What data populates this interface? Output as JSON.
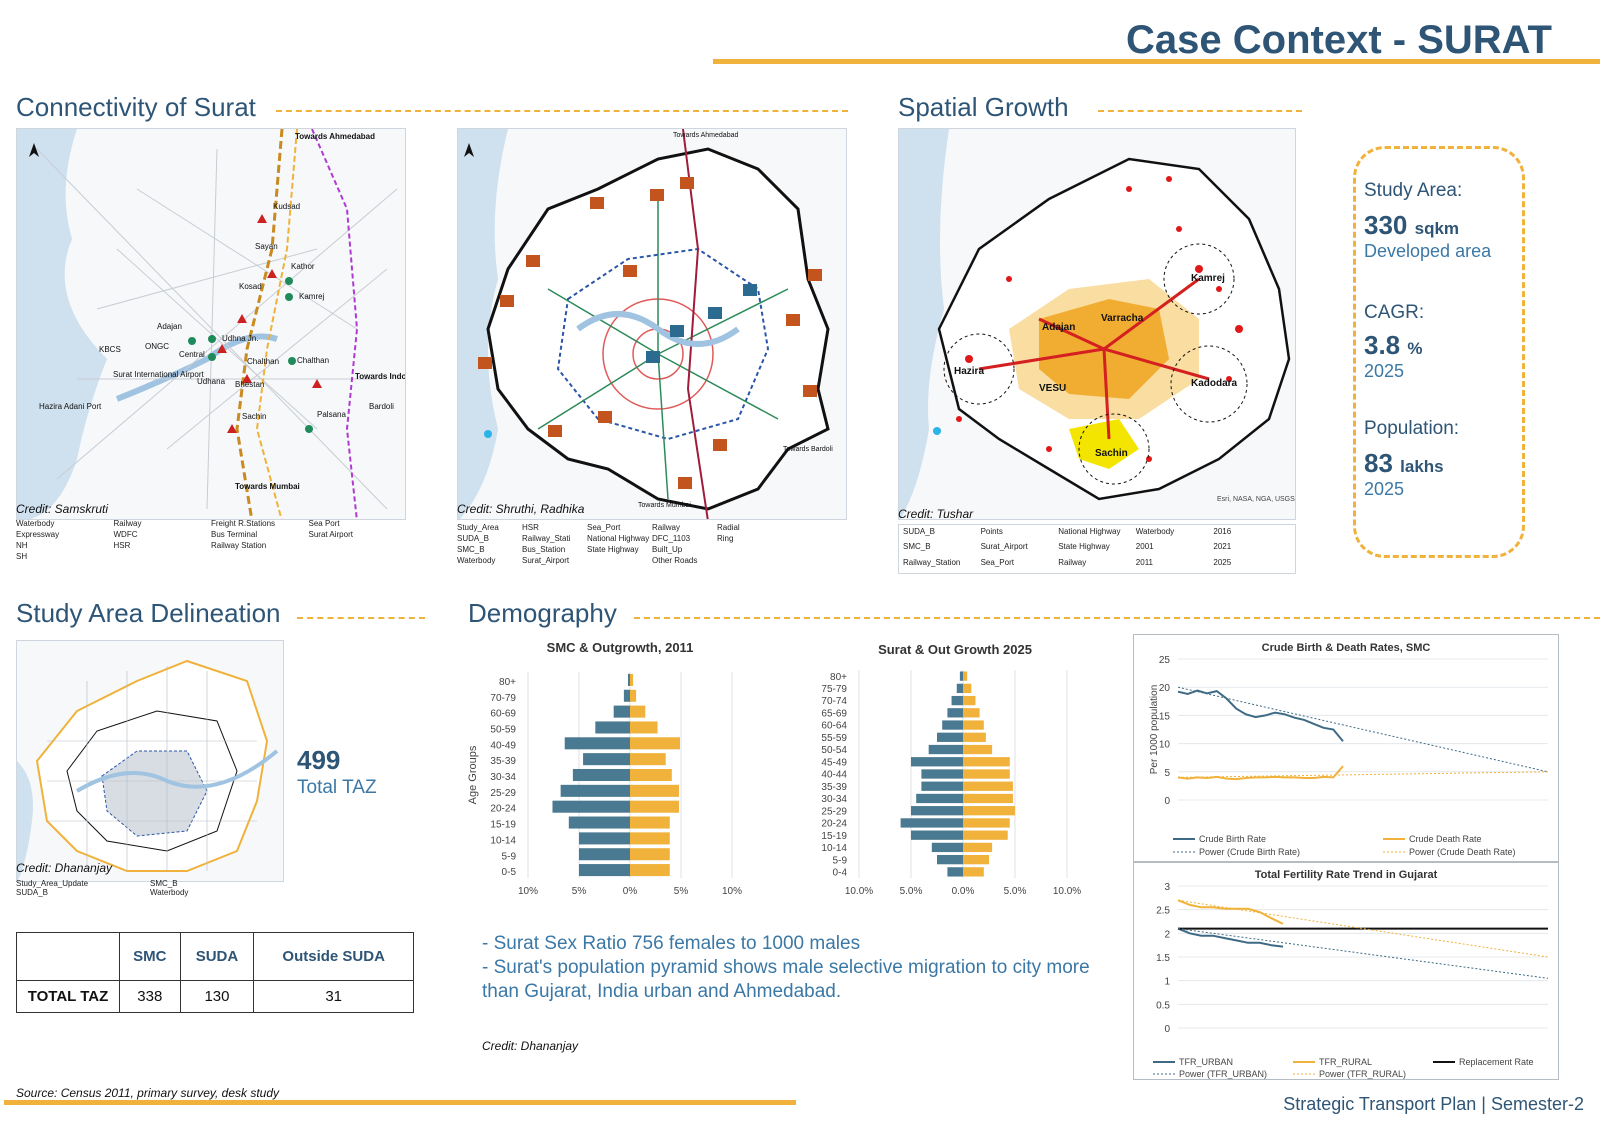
{
  "title": "Case Context - SURAT",
  "sections": {
    "connectivity": "Connectivity of Surat",
    "spatial": "Spatial Growth",
    "delineation": "Study Area Delineation",
    "demography": "Demography"
  },
  "map1": {
    "credit": "Credit: Samskruti",
    "labels": [
      "Towards Ahmedabad",
      "Kudsad",
      "Sayan",
      "Kathor",
      "Kosad",
      "Kamrej",
      "Adajan",
      "Udhna Jn.",
      "KBCS",
      "ONGC",
      "Central",
      "Chalthan",
      "Chalthan",
      "Surat International Airport",
      "Udhana",
      "Bhestan",
      "Towards Indore",
      "Bardoli",
      "Hazira Adani Port",
      "Sachin",
      "Palsana",
      "Towards Mumbai"
    ],
    "legend": [
      "Waterbody",
      "Expressway",
      "NH",
      "SH",
      "Railway",
      "WDFC",
      "HSR",
      "Freight R.Stations",
      "Bus Terminal",
      "Railway Station",
      "Sea Port",
      "Surat Airport"
    ]
  },
  "map2": {
    "credit": "Credit: Shruthi, Radhika",
    "labels": [
      "Towards Ahmedabad",
      "Towards Bardoli",
      "Towards Mumbai"
    ],
    "legend": [
      "Study_Area",
      "SUDA_B",
      "SMC_B",
      "Waterbody",
      "HSR",
      "Railway_Stati",
      "Bus_Station",
      "Surat_Airport",
      "Sea_Port",
      "National Highway",
      "State Highway",
      "Railway",
      "DFC_1103",
      "Built_Up",
      "Other Roads",
      "Radial",
      "Ring"
    ]
  },
  "map3": {
    "credit": "Credit: Tushar",
    "labels": [
      "Kamrej",
      "Varracha",
      "Adajan",
      "Hazira",
      "VESU",
      "Kadodara",
      "Sachin"
    ],
    "legend": [
      "SUDA_B",
      "SMC_B",
      "Railway_Station",
      "Points",
      "Surat_Airport",
      "Sea_Port",
      "National Highway",
      "State Highway",
      "Railway",
      "Waterbody",
      "2001",
      "2011",
      "2016",
      "2021",
      "2025"
    ],
    "source": "Esri, NASA, NGA, USGS"
  },
  "stats": {
    "area_label": "Study Area:",
    "area_value": "330",
    "area_unit": "sqkm",
    "area_sub": "Developed area",
    "cagr_label": "CAGR:",
    "cagr_value": "3.8",
    "cagr_unit": "%",
    "cagr_sub": "2025",
    "pop_label": "Population:",
    "pop_value": "83",
    "pop_unit": "lakhs",
    "pop_sub": "2025"
  },
  "delineation": {
    "credit": "Credit: Dhananjay",
    "legend": [
      "Study_Area_Update",
      "SMC_B",
      "SUDA_B",
      "Waterbody"
    ],
    "taz_value": "499",
    "taz_label": "Total TAZ",
    "table": {
      "headers": [
        "",
        "SMC",
        "SUDA",
        "Outside SUDA"
      ],
      "row_label": "TOTAL TAZ",
      "values": [
        "338",
        "130",
        "31"
      ]
    }
  },
  "demography": {
    "bullets": [
      "- Surat Sex Ratio 756 females to 1000 males",
      "- Surat's population pyramid shows male selective migration to city more than Gujarat, India urban and Ahmedabad."
    ],
    "credit": "Credit: Dhananjay"
  },
  "footer": {
    "source": "Source: Census 2011, primary survey, desk study",
    "course": "Strategic Transport Plan | Semester-2"
  },
  "colors": {
    "male": "#4a7a92",
    "female": "#f0b23a",
    "accent": "#f0b23a",
    "title": "#2e5576"
  },
  "chart_data": [
    {
      "type": "bar",
      "title": "SMC & Outgrowth, 2011",
      "ylabel": "Age Groups",
      "categories": [
        "0-5",
        "5-9",
        "10-14",
        "15-19",
        "20-24",
        "25-29",
        "30-34",
        "35-39",
        "40-49",
        "50-59",
        "60-69",
        "70-79",
        "80+"
      ],
      "series": [
        {
          "values": [
            -5.0,
            -5.0,
            -5.0,
            -6.0,
            -7.6,
            -6.8,
            -5.6,
            -4.6,
            -6.4,
            -3.4,
            -1.6,
            -0.6,
            -0.2
          ]
        },
        {
          "values": [
            3.9,
            3.9,
            3.9,
            3.9,
            4.8,
            4.8,
            4.1,
            3.5,
            4.9,
            2.7,
            1.5,
            0.6,
            0.3
          ]
        }
      ],
      "xticks": [
        "10%",
        "5%",
        "0%",
        "5%",
        "10%"
      ],
      "xlim": [
        -10,
        10
      ]
    },
    {
      "type": "bar",
      "title": "Surat & Out Growth 2025",
      "categories": [
        "0-4",
        "5-9",
        "10-14",
        "15-19",
        "20-24",
        "25-29",
        "30-34",
        "35-39",
        "40-44",
        "45-49",
        "50-54",
        "55-59",
        "60-64",
        "65-69",
        "70-74",
        "75-79",
        "80+"
      ],
      "series": [
        {
          "values": [
            -3.0,
            -5.0,
            -6.0,
            -10.0,
            -12.0,
            -10.0,
            -9.0,
            -8.0,
            -8.0,
            -10.0,
            -6.6,
            -5.0,
            -4.0,
            -3.0,
            -2.2,
            -1.2,
            -0.6
          ]
        },
        {
          "values": [
            4.0,
            5.0,
            5.6,
            8.6,
            9.0,
            10.0,
            9.6,
            9.6,
            9.0,
            9.0,
            5.6,
            4.4,
            4.0,
            3.2,
            2.4,
            1.6,
            0.8
          ]
        }
      ],
      "xticks": [
        "10.0%",
        "5.0%",
        "0.0%",
        "5.0%",
        "10.0%"
      ],
      "xlim": [
        -20,
        20
      ]
    },
    {
      "type": "line",
      "title": "Crude Birth & Death Rates, SMC",
      "ylabel": "Per 1000 population",
      "ylim": [
        0,
        25
      ],
      "yticks": [
        0,
        5,
        10,
        15,
        20,
        25
      ],
      "series": [
        {
          "name": "Crude Birth Rate",
          "values": [
            19.2,
            18.8,
            19.4,
            18.9,
            19.3,
            18.0,
            16.2,
            15.2,
            14.7,
            15.0,
            15.5,
            15.2,
            14.6,
            14.2,
            13.5,
            12.8,
            12.5,
            10.4
          ]
        },
        {
          "name": "Crude Death Rate",
          "values": [
            4.0,
            3.8,
            4.0,
            3.9,
            4.1,
            3.8,
            3.7,
            3.9,
            4.0,
            4.0,
            4.1,
            4.0,
            4.0,
            3.9,
            3.9,
            4.1,
            4.0,
            6.0
          ]
        },
        {
          "name": "Power (Crude Birth Rate)",
          "values": [
            20.0,
            5.0
          ]
        },
        {
          "name": "Power (Crude Death Rate)",
          "values": [
            4.0,
            5.0
          ]
        }
      ]
    },
    {
      "type": "line",
      "title": "Total Fertility Rate Trend in Gujarat",
      "ylim": [
        0,
        3
      ],
      "yticks": [
        0,
        0.5,
        1,
        1.5,
        2,
        2.5,
        3
      ],
      "series": [
        {
          "name": "TFR_URBAN",
          "values": [
            2.1,
            2.0,
            1.95,
            1.95,
            1.9,
            1.85,
            1.8,
            1.8,
            1.75,
            1.72
          ]
        },
        {
          "name": "TFR_RURAL",
          "values": [
            2.7,
            2.6,
            2.55,
            2.55,
            2.52,
            2.52,
            2.52,
            2.45,
            2.32,
            2.2
          ]
        },
        {
          "name": "Replacement Rate",
          "values": [
            2.1,
            2.1
          ]
        },
        {
          "name": "Power (TFR_URBAN)",
          "values": [
            2.1,
            1.05
          ]
        },
        {
          "name": "Power (TFR_RURAL)",
          "values": [
            2.7,
            1.5
          ]
        }
      ]
    }
  ]
}
